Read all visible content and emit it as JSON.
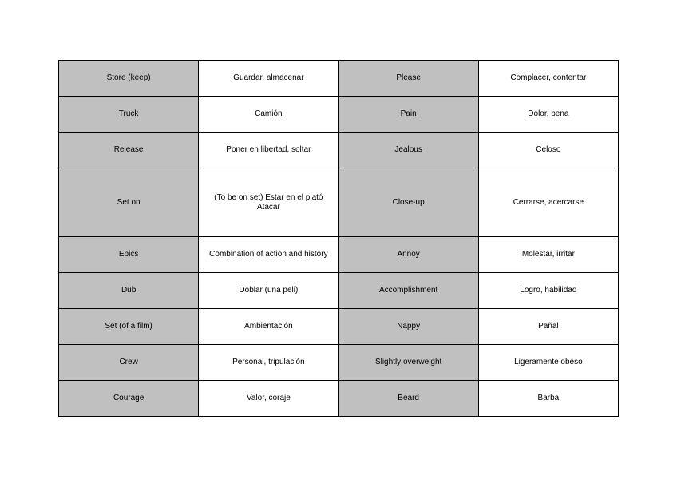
{
  "vocabulary_table": {
    "colors": {
      "term_cell": "#c0c0c0",
      "definition_cell": "#ffffff"
    },
    "rows": [
      [
        {
          "term": "Store (keep)",
          "definition": "Guardar, almacenar"
        },
        {
          "term": "Please",
          "definition": "Complacer, contentar"
        }
      ],
      [
        {
          "term": "Truck",
          "definition": "Camión"
        },
        {
          "term": "Pain",
          "definition": "Dolor, pena"
        }
      ],
      [
        {
          "term": "Release",
          "definition": "Poner en libertad, soltar"
        },
        {
          "term": "Jealous",
          "definition": "Celoso"
        }
      ],
      [
        {
          "term": "Set on",
          "definition": "(To be on set) Estar en el plató\nAtacar"
        },
        {
          "term": "Close-up",
          "definition": "Cerrarse, acercarse"
        }
      ],
      [
        {
          "term": "Epics",
          "definition": "Combination of action and history"
        },
        {
          "term": "Annoy",
          "definition": "Molestar, irritar"
        }
      ],
      [
        {
          "term": "Dub",
          "definition": "Doblar (una peli)"
        },
        {
          "term": "Accomplishment",
          "definition": "Logro, habilidad"
        }
      ],
      [
        {
          "term": "Set (of a film)",
          "definition": "Ambientación"
        },
        {
          "term": "Nappy",
          "definition": "Pañal"
        }
      ],
      [
        {
          "term": "Crew",
          "definition": "Personal, tripulación"
        },
        {
          "term": "Slightly overweight",
          "definition": "Ligeramente obeso"
        }
      ],
      [
        {
          "term": "Courage",
          "definition": "Valor, coraje"
        },
        {
          "term": "Beard",
          "definition": "Barba"
        }
      ]
    ]
  }
}
